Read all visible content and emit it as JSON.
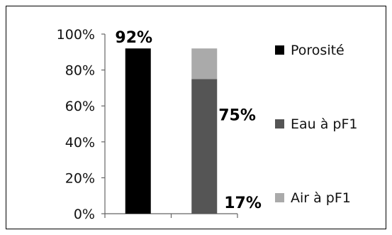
{
  "chart_data": {
    "type": "bar",
    "stacked": true,
    "categories": [
      "",
      ""
    ],
    "series": [
      {
        "name": "Porosité",
        "color": "#000000",
        "values": [
          92,
          0
        ]
      },
      {
        "name": "Eau à pF1",
        "color": "#555555",
        "values": [
          0,
          75
        ]
      },
      {
        "name": "Air à pF1",
        "color": "#aaaaaa",
        "values": [
          0,
          17
        ]
      }
    ],
    "data_labels": [
      {
        "text": "92%",
        "series": "Porosité",
        "category_index": 0
      },
      {
        "text": "75%",
        "series": "Eau à pF1",
        "category_index": 1
      },
      {
        "text": "17%",
        "series": "Air à pF1",
        "category_index": 1
      }
    ],
    "yticks": [
      "0%",
      "20%",
      "40%",
      "60%",
      "80%",
      "100%"
    ],
    "ylim": [
      0,
      100
    ],
    "title": "",
    "xlabel": "",
    "ylabel": "",
    "grid": false,
    "legend_position": "right"
  }
}
